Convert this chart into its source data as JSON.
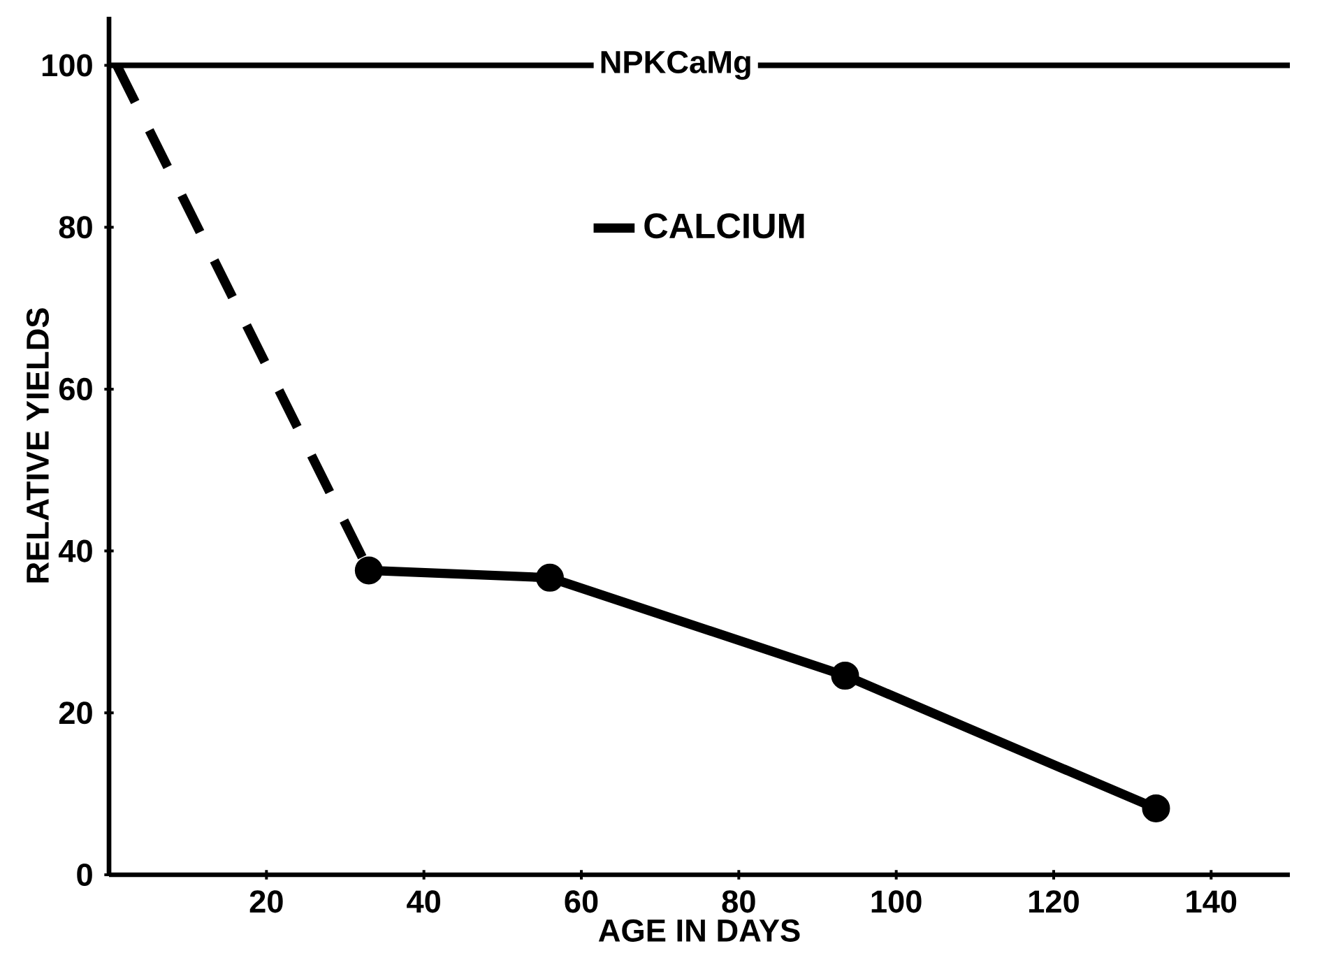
{
  "chart_data": {
    "type": "line",
    "xlabel": "AGE  IN  DAYS",
    "ylabel": "RELATIVE  YIELDS",
    "xlim": [
      0,
      150
    ],
    "ylim": [
      0,
      106
    ],
    "xticks": [
      20,
      40,
      60,
      80,
      100,
      120,
      140
    ],
    "yticks": [
      0,
      20,
      40,
      60,
      80,
      100
    ],
    "series": [
      {
        "color": "#000000",
        "x": [
          1,
          33
        ],
        "values": [
          100,
          37.6
        ],
        "line_style": "dashed"
      },
      {
        "name": "CALCIUM",
        "color": "#000000",
        "x": [
          33,
          56,
          93.5,
          133
        ],
        "values": [
          37.6,
          36.7,
          24.6,
          8.2
        ],
        "line_style": "solid",
        "marker": "circle"
      }
    ],
    "ref_lines": [
      {
        "axis": "y",
        "value": 100,
        "label": "NPKCaMg",
        "color": "#000000",
        "line_style": "solid"
      }
    ],
    "legend": "top",
    "grid": false
  }
}
